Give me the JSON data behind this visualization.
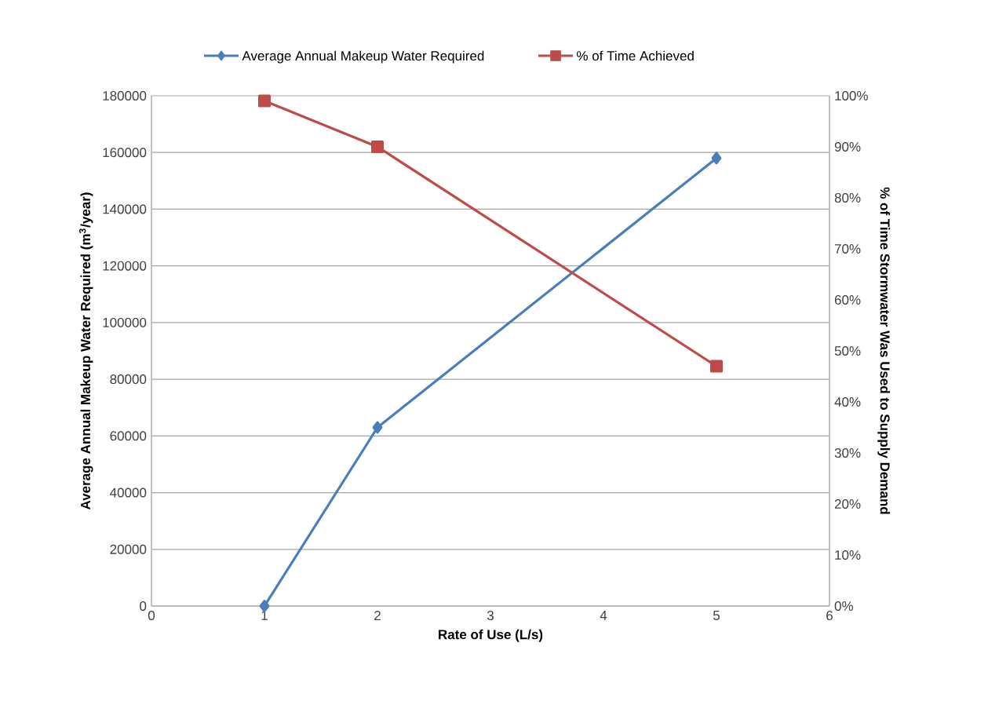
{
  "chart_data": {
    "type": "line",
    "xlabel": "Rate of Use (L/s)",
    "ylabel": "Average Annual Makeup Water Required (m$^{3}$/year)",
    "y2label": "% of Time Stormwater Was Used to Supply Demand",
    "xlim": [
      0,
      6
    ],
    "xticks": [
      0,
      1,
      2,
      3,
      4,
      5,
      6
    ],
    "ylim": [
      0,
      180000
    ],
    "yticks": [
      0,
      20000,
      40000,
      60000,
      80000,
      100000,
      120000,
      140000,
      160000,
      180000
    ],
    "y2lim": [
      0,
      100
    ],
    "y2ticks": [
      {
        "value": 0,
        "label": "0%"
      },
      {
        "value": 10,
        "label": "10%"
      },
      {
        "value": 20,
        "label": "20%"
      },
      {
        "value": 30,
        "label": "30%"
      },
      {
        "value": 40,
        "label": "40%"
      },
      {
        "value": 50,
        "label": "50%"
      },
      {
        "value": 60,
        "label": "60%"
      },
      {
        "value": 70,
        "label": "70%"
      },
      {
        "value": 80,
        "label": "80%"
      },
      {
        "value": 90,
        "label": "90%"
      },
      {
        "value": 100,
        "label": "100%"
      }
    ],
    "grid": "y",
    "legend": "top",
    "line_style": "solid",
    "series": [
      {
        "name": "Average Annual Makeup Water Required",
        "color": "#4a7ebb",
        "marker": "diamond",
        "x": [
          1,
          2,
          5
        ],
        "values": [
          0,
          63000,
          158000
        ]
      },
      {
        "name": "% of Time Achieved",
        "color": "#be4b48",
        "marker": "square",
        "axis": "y2",
        "x": [
          1,
          2,
          5
        ],
        "values": [
          99,
          90,
          47
        ]
      }
    ]
  }
}
